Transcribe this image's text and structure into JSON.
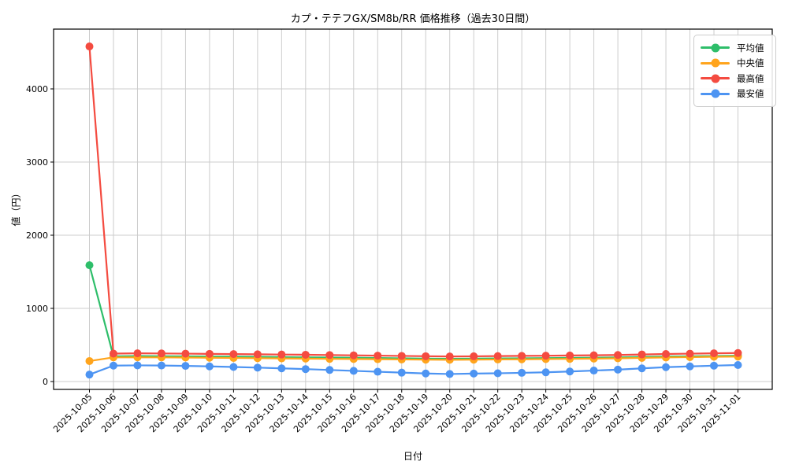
{
  "figure": {
    "title": "カプ・テテフGX/SM8b/RR 価格推移（過去30日間）",
    "xlabel": "日付",
    "ylabel": "値（円）"
  },
  "chart_data": {
    "type": "line",
    "title": "カプ・テテフGX/SM8b/RR 価格推移（過去30日間）",
    "xlabel": "日付",
    "ylabel": "値（円）",
    "grid": true,
    "legend_position": "upper right",
    "marker": "circle",
    "ylim": [
      -110,
      4820
    ],
    "yticks": [
      0,
      1000,
      2000,
      3000,
      4000
    ],
    "x": [
      "2025-10-05",
      "2025-10-06",
      "2025-10-07",
      "2025-10-08",
      "2025-10-09",
      "2025-10-10",
      "2025-10-11",
      "2025-10-12",
      "2025-10-13",
      "2025-10-14",
      "2025-10-15",
      "2025-10-16",
      "2025-10-17",
      "2025-10-18",
      "2025-10-19",
      "2025-10-20",
      "2025-10-21",
      "2025-10-22",
      "2025-10-23",
      "2025-10-24",
      "2025-10-25",
      "2025-10-26",
      "2025-10-27",
      "2025-10-28",
      "2025-10-29",
      "2025-10-30",
      "2025-10-31",
      "2025-11-01"
    ],
    "series": [
      {
        "name": "平均値",
        "key": "avg",
        "color": "#2EBE6A",
        "values": [
          1590,
          345,
          348,
          346,
          344,
          342,
          340,
          337,
          334,
          331,
          328,
          325,
          322,
          318,
          314,
          311,
          313,
          316,
          318,
          320,
          323,
          326,
          330,
          336,
          341,
          345,
          349,
          352
        ]
      },
      {
        "name": "中央値",
        "key": "median",
        "color": "#FFA41C",
        "values": [
          280,
          330,
          331,
          330,
          328,
          325,
          322,
          319,
          316,
          313,
          310,
          308,
          305,
          302,
          299,
          297,
          299,
          302,
          304,
          307,
          310,
          313,
          317,
          323,
          329,
          334,
          339,
          341
        ]
      },
      {
        "name": "最高値",
        "key": "max",
        "color": "#F44B40",
        "values": [
          4580,
          382,
          386,
          384,
          381,
          378,
          375,
          372,
          369,
          366,
          362,
          358,
          354,
          350,
          346,
          343,
          345,
          348,
          351,
          353,
          356,
          359,
          363,
          370,
          376,
          381,
          386,
          390
        ]
      },
      {
        "name": "最安値",
        "key": "min",
        "color": "#4D94F2",
        "values": [
          95,
          218,
          221,
          219,
          214,
          207,
          199,
          190,
          180,
          170,
          158,
          146,
          134,
          122,
          110,
          103,
          109,
          113,
          119,
          126,
          137,
          150,
          163,
          180,
          196,
          207,
          217,
          226
        ]
      }
    ],
    "grid_color": "#cccccc",
    "spine_color": "#000000"
  }
}
